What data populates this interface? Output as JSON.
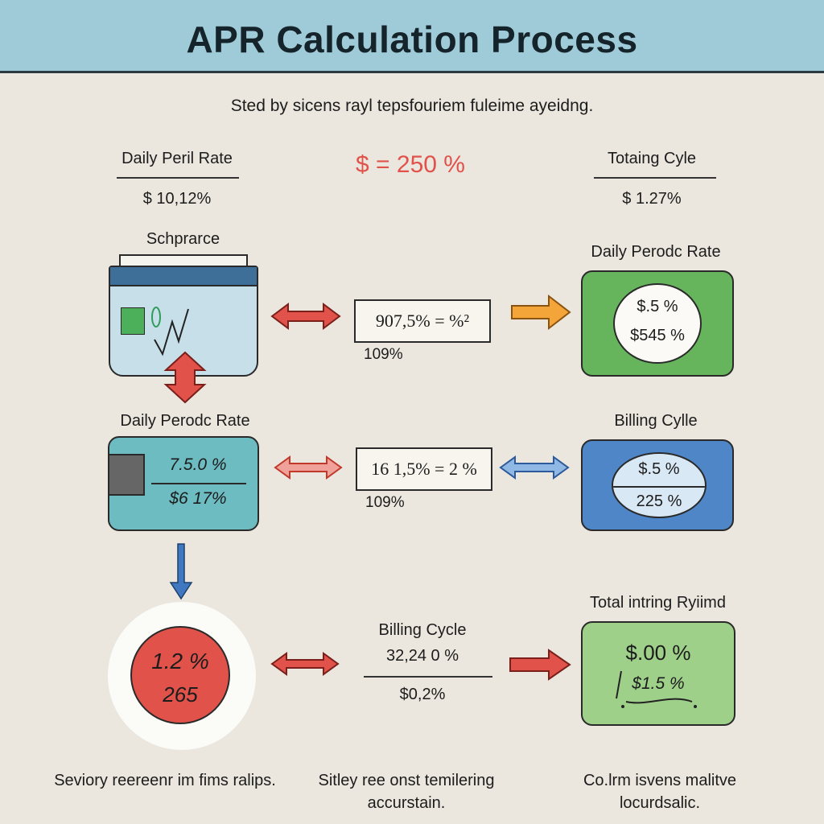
{
  "header": {
    "title": "APR Calculation Process"
  },
  "subtitle": "Sted by sicens rayl tepsfouriem fuleime ayeidng.",
  "top_row": {
    "left": {
      "label": "Daily Peril Rate",
      "value": "$ 10,12%"
    },
    "center": {
      "value": "$ = 250 %"
    },
    "right": {
      "label": "Totaing Cyle",
      "value": "$ 1.27%"
    }
  },
  "row1": {
    "left_label": "Schprarce",
    "formula": "907,5% = %²",
    "formula_sub": "109%",
    "right_label": "Daily Perodc Rate",
    "right_top": "$.5 %",
    "right_bottom": "$545 %"
  },
  "row2": {
    "left_label": "Daily Perodc Rate",
    "left_top": "7.5.0 %",
    "left_bottom": "$6 17%",
    "formula": "16 1,5% = 2 %",
    "formula_sub": "109%",
    "right_label": "Billing Cylle",
    "right_top": "$.5 %",
    "right_bottom": "225 %"
  },
  "row3": {
    "circle_top": "1.2 %",
    "circle_bottom": "265",
    "center_label": "Billing Cycle",
    "center_top": "32,24 0 %",
    "center_bottom": "$0,2%",
    "right_label": "Total intring Ryiimd",
    "right_top": "$.00 %",
    "right_bottom": "$1.5 %"
  },
  "footer": {
    "left": "Seviory reereenr im fims ralips.",
    "center": "Sitley ree onst temilering accurstain.",
    "right": "Co.lrm isvens malitve locurdsalic."
  },
  "colors": {
    "header_bg": "#9fcad8",
    "red": "#e0524a",
    "orange": "#f4a53a",
    "blue": "#3f78c0",
    "green": "#66b45c",
    "teal": "#6dbcc2",
    "light_green": "#9fd08a"
  }
}
